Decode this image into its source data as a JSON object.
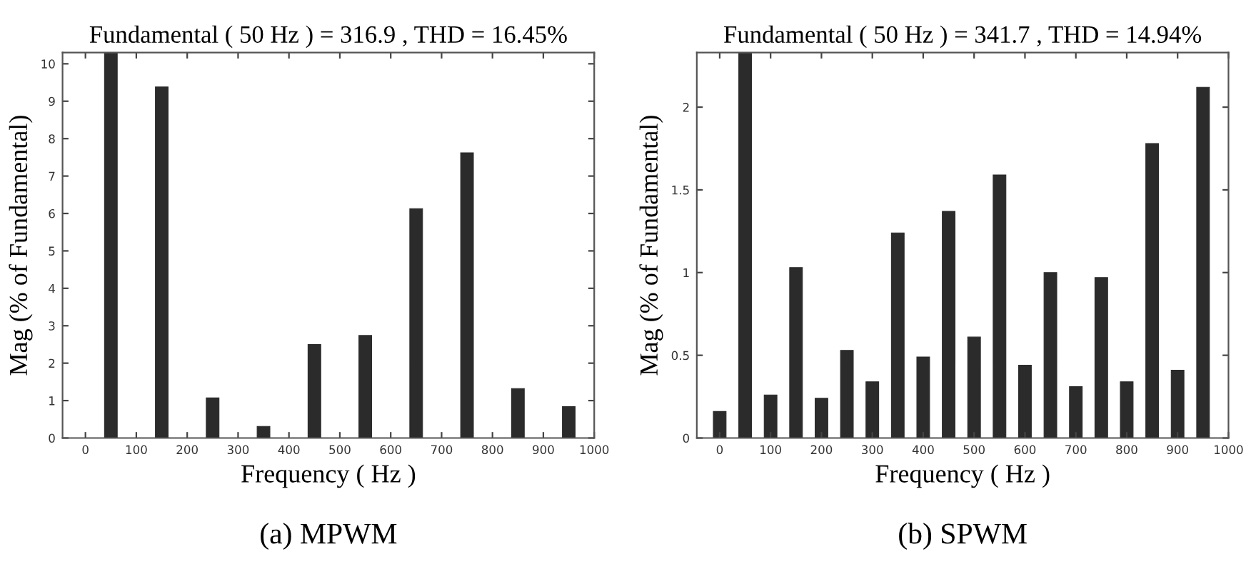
{
  "chart_data": [
    {
      "type": "bar",
      "title": "Fundamental ( 50 Hz ) = 316.9 , THD = 16.45%",
      "xlabel": "Frequency ( Hz )",
      "ylabel": "Mag (% of Fundamental)",
      "annotations": [
        "(a) MPWM"
      ],
      "x": [
        0,
        50,
        100,
        150,
        200,
        250,
        300,
        350,
        400,
        450,
        500,
        550,
        600,
        650,
        700,
        750,
        800,
        850,
        900,
        950
      ],
      "values": [
        0,
        10.3,
        0,
        9.38,
        0,
        1.07,
        0,
        0.31,
        0,
        2.5,
        0,
        2.74,
        0,
        6.13,
        0,
        7.62,
        0,
        1.32,
        0,
        0.84
      ],
      "color": "#2b2b2b",
      "xlim": [
        -45,
        1000
      ],
      "ylim": [
        0,
        10.3
      ],
      "xticks": [
        0,
        100,
        200,
        300,
        400,
        500,
        600,
        700,
        800,
        900,
        {
          "value": 1000,
          "label": "1000"
        }
      ],
      "yticks": [
        0,
        1,
        2,
        3,
        4,
        5,
        6,
        7,
        8,
        9,
        10
      ],
      "grid": false
    },
    {
      "type": "bar",
      "title": "Fundamental ( 50 Hz ) = 341.7 , THD = 14.94%",
      "xlabel": "Frequency ( Hz )",
      "ylabel": "Mag (% of Fundamental)",
      "annotations": [
        "(b) SPWM"
      ],
      "x": [
        0,
        50,
        100,
        150,
        200,
        250,
        300,
        350,
        400,
        450,
        500,
        550,
        600,
        650,
        700,
        750,
        800,
        850,
        900,
        950
      ],
      "values": [
        0.16,
        2.33,
        0.26,
        1.03,
        0.24,
        0.53,
        0.34,
        1.24,
        0.49,
        1.37,
        0.61,
        1.59,
        0.44,
        1.0,
        0.31,
        0.97,
        0.34,
        1.78,
        0.41,
        2.12
      ],
      "color": "#2b2b2b",
      "xlim": [
        -45,
        1000
      ],
      "ylim": [
        0,
        2.33
      ],
      "xticks": [
        0,
        100,
        200,
        300,
        400,
        500,
        600,
        700,
        800,
        900,
        {
          "value": 1000,
          "label": "1000"
        }
      ],
      "yticks": [
        0,
        0.5,
        1,
        1.5,
        2
      ],
      "grid": false
    }
  ]
}
